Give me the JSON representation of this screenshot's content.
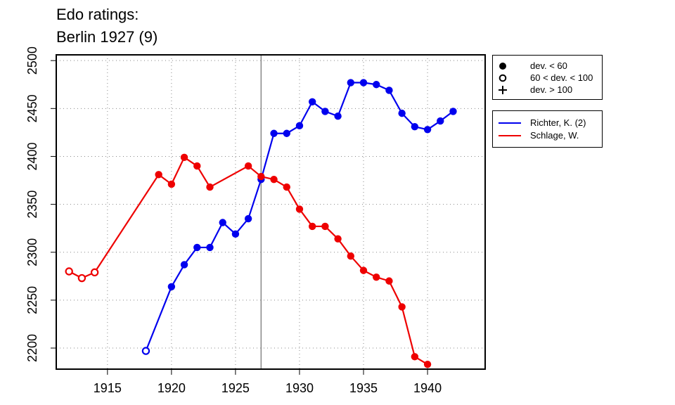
{
  "chart_data": {
    "type": "line",
    "title": "Edo ratings:",
    "subtitle": "Berlin 1927 (9)",
    "xlabel": "",
    "ylabel": "",
    "xlim": [
      1911,
      1944.5
    ],
    "ylim": [
      2178,
      2506
    ],
    "x_ticks": [
      1915,
      1920,
      1925,
      1930,
      1935,
      1940
    ],
    "y_ticks": [
      2200,
      2250,
      2300,
      2350,
      2400,
      2450,
      2500
    ],
    "grid": true,
    "reference_line_x": 1927,
    "marker_legend": [
      {
        "symbol": "filled-circle",
        "label": "dev. < 60"
      },
      {
        "symbol": "open-circle",
        "label": "60 < dev. < 100"
      },
      {
        "symbol": "plus",
        "label": "dev. > 100"
      }
    ],
    "legend_position": "right",
    "series": [
      {
        "name": "Richter, K. (2)",
        "color": "#0000ee",
        "points": [
          {
            "x": 1918,
            "y": 2197,
            "marker": "open"
          },
          {
            "x": 1920,
            "y": 2264,
            "marker": "filled"
          },
          {
            "x": 1921,
            "y": 2287,
            "marker": "filled"
          },
          {
            "x": 1922,
            "y": 2305,
            "marker": "filled"
          },
          {
            "x": 1923,
            "y": 2305,
            "marker": "filled"
          },
          {
            "x": 1924,
            "y": 2331,
            "marker": "filled"
          },
          {
            "x": 1925,
            "y": 2319,
            "marker": "filled"
          },
          {
            "x": 1926,
            "y": 2335,
            "marker": "filled"
          },
          {
            "x": 1927,
            "y": 2376,
            "marker": "filled"
          },
          {
            "x": 1928,
            "y": 2424,
            "marker": "filled"
          },
          {
            "x": 1929,
            "y": 2424,
            "marker": "filled"
          },
          {
            "x": 1930,
            "y": 2432,
            "marker": "filled"
          },
          {
            "x": 1931,
            "y": 2457,
            "marker": "filled"
          },
          {
            "x": 1932,
            "y": 2447,
            "marker": "filled"
          },
          {
            "x": 1933,
            "y": 2442,
            "marker": "filled"
          },
          {
            "x": 1934,
            "y": 2477,
            "marker": "filled"
          },
          {
            "x": 1935,
            "y": 2477,
            "marker": "filled"
          },
          {
            "x": 1936,
            "y": 2475,
            "marker": "filled"
          },
          {
            "x": 1937,
            "y": 2469,
            "marker": "filled"
          },
          {
            "x": 1938,
            "y": 2445,
            "marker": "filled"
          },
          {
            "x": 1939,
            "y": 2431,
            "marker": "filled"
          },
          {
            "x": 1940,
            "y": 2428,
            "marker": "filled"
          },
          {
            "x": 1941,
            "y": 2437,
            "marker": "filled"
          },
          {
            "x": 1942,
            "y": 2447,
            "marker": "filled"
          }
        ]
      },
      {
        "name": "Schlage, W.",
        "color": "#ee0000",
        "points": [
          {
            "x": 1912,
            "y": 2280,
            "marker": "open"
          },
          {
            "x": 1913,
            "y": 2273,
            "marker": "open"
          },
          {
            "x": 1914,
            "y": 2279,
            "marker": "open"
          },
          {
            "x": 1919,
            "y": 2381,
            "marker": "filled"
          },
          {
            "x": 1920,
            "y": 2371,
            "marker": "filled"
          },
          {
            "x": 1921,
            "y": 2399,
            "marker": "filled"
          },
          {
            "x": 1922,
            "y": 2390,
            "marker": "filled"
          },
          {
            "x": 1923,
            "y": 2368,
            "marker": "filled"
          },
          {
            "x": 1926,
            "y": 2390,
            "marker": "filled"
          },
          {
            "x": 1927,
            "y": 2379,
            "marker": "filled"
          },
          {
            "x": 1928,
            "y": 2376,
            "marker": "filled"
          },
          {
            "x": 1929,
            "y": 2368,
            "marker": "filled"
          },
          {
            "x": 1930,
            "y": 2345,
            "marker": "filled"
          },
          {
            "x": 1931,
            "y": 2327,
            "marker": "filled"
          },
          {
            "x": 1932,
            "y": 2327,
            "marker": "filled"
          },
          {
            "x": 1933,
            "y": 2314,
            "marker": "filled"
          },
          {
            "x": 1934,
            "y": 2296,
            "marker": "filled"
          },
          {
            "x": 1935,
            "y": 2281,
            "marker": "filled"
          },
          {
            "x": 1936,
            "y": 2274,
            "marker": "filled"
          },
          {
            "x": 1937,
            "y": 2270,
            "marker": "filled"
          },
          {
            "x": 1938,
            "y": 2243,
            "marker": "filled"
          },
          {
            "x": 1939,
            "y": 2191,
            "marker": "filled"
          },
          {
            "x": 1940,
            "y": 2183,
            "marker": "filled"
          }
        ]
      }
    ]
  }
}
